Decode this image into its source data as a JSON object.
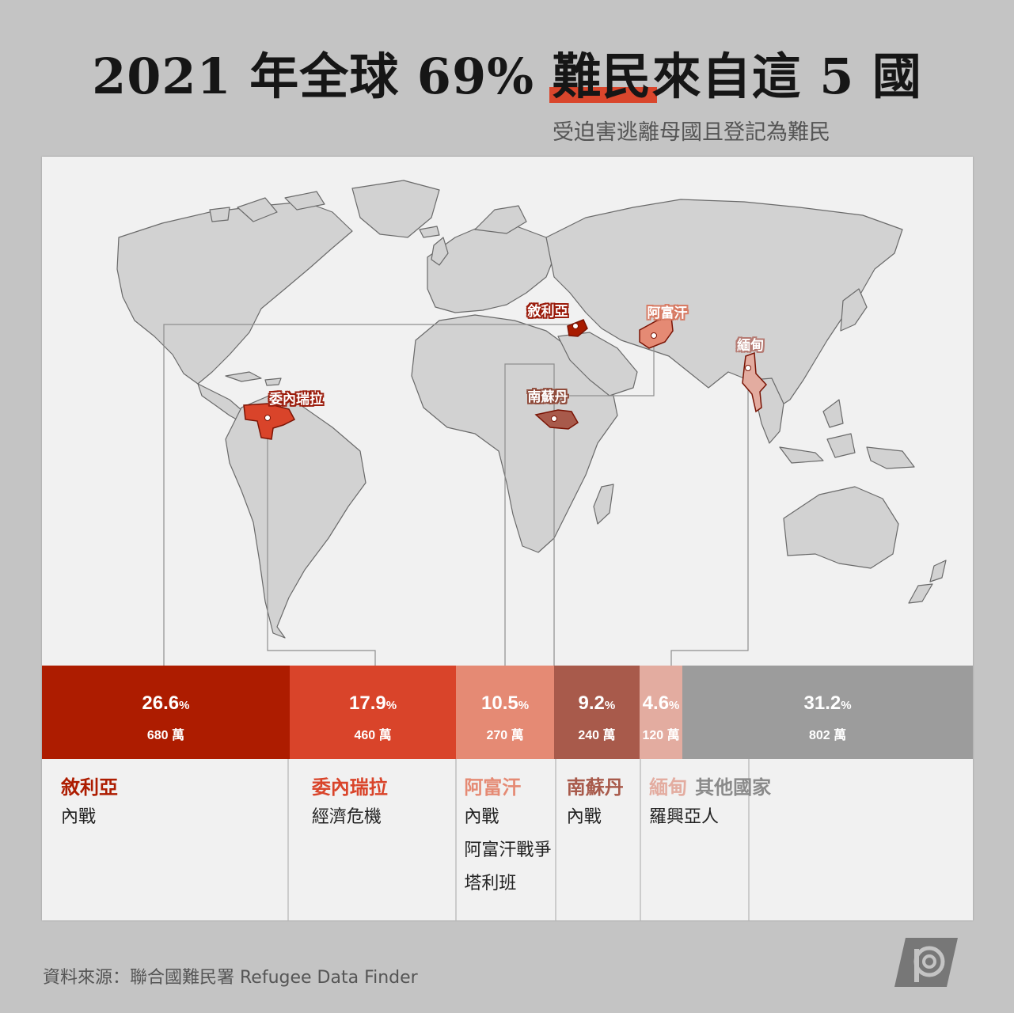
{
  "title": {
    "prefix": "2021 年全球 69% ",
    "highlight": "難民",
    "suffix": "來自這 5 國"
  },
  "subtitle": "受迫害逃離母國且登記為難民",
  "map_labels": {
    "syria": "敘利亞",
    "afghanistan": "阿富汗",
    "myanmar": "緬甸",
    "venezuela": "委內瑞拉",
    "south_sudan": "南蘇丹"
  },
  "chart_data": {
    "type": "bar",
    "orientation": "stacked-horizontal-100",
    "categories": [
      "敘利亞",
      "委內瑞拉",
      "阿富汗",
      "南蘇丹",
      "緬甸",
      "其他國家"
    ],
    "values_percent": [
      26.6,
      17.9,
      10.5,
      9.2,
      4.6,
      31.2
    ],
    "value_labels": [
      "26.6",
      "17.9",
      "10.5",
      "9.2",
      "4.6",
      "31.2"
    ],
    "percent_unit": "%",
    "counts": [
      "680 萬",
      "460 萬",
      "270 萬",
      "240 萬",
      "120 萬",
      "802 萬"
    ],
    "colors": [
      "#ad1c00",
      "#d9442a",
      "#e58a74",
      "#a85a4b",
      "#e3aca0",
      "#9c9c9c"
    ],
    "reasons": [
      [
        "內戰"
      ],
      [
        "經濟危機"
      ],
      [
        "內戰",
        "阿富汗戰爭",
        "塔利班"
      ],
      [
        "內戰"
      ],
      [
        "羅興亞人"
      ],
      []
    ],
    "name_colors": [
      "#ad1c00",
      "#d9442a",
      "#e58a74",
      "#a85a4b",
      "#e3aca0",
      "#8a8a8a"
    ]
  },
  "source": "資料來源：聯合國難民署 Refugee Data Finder"
}
